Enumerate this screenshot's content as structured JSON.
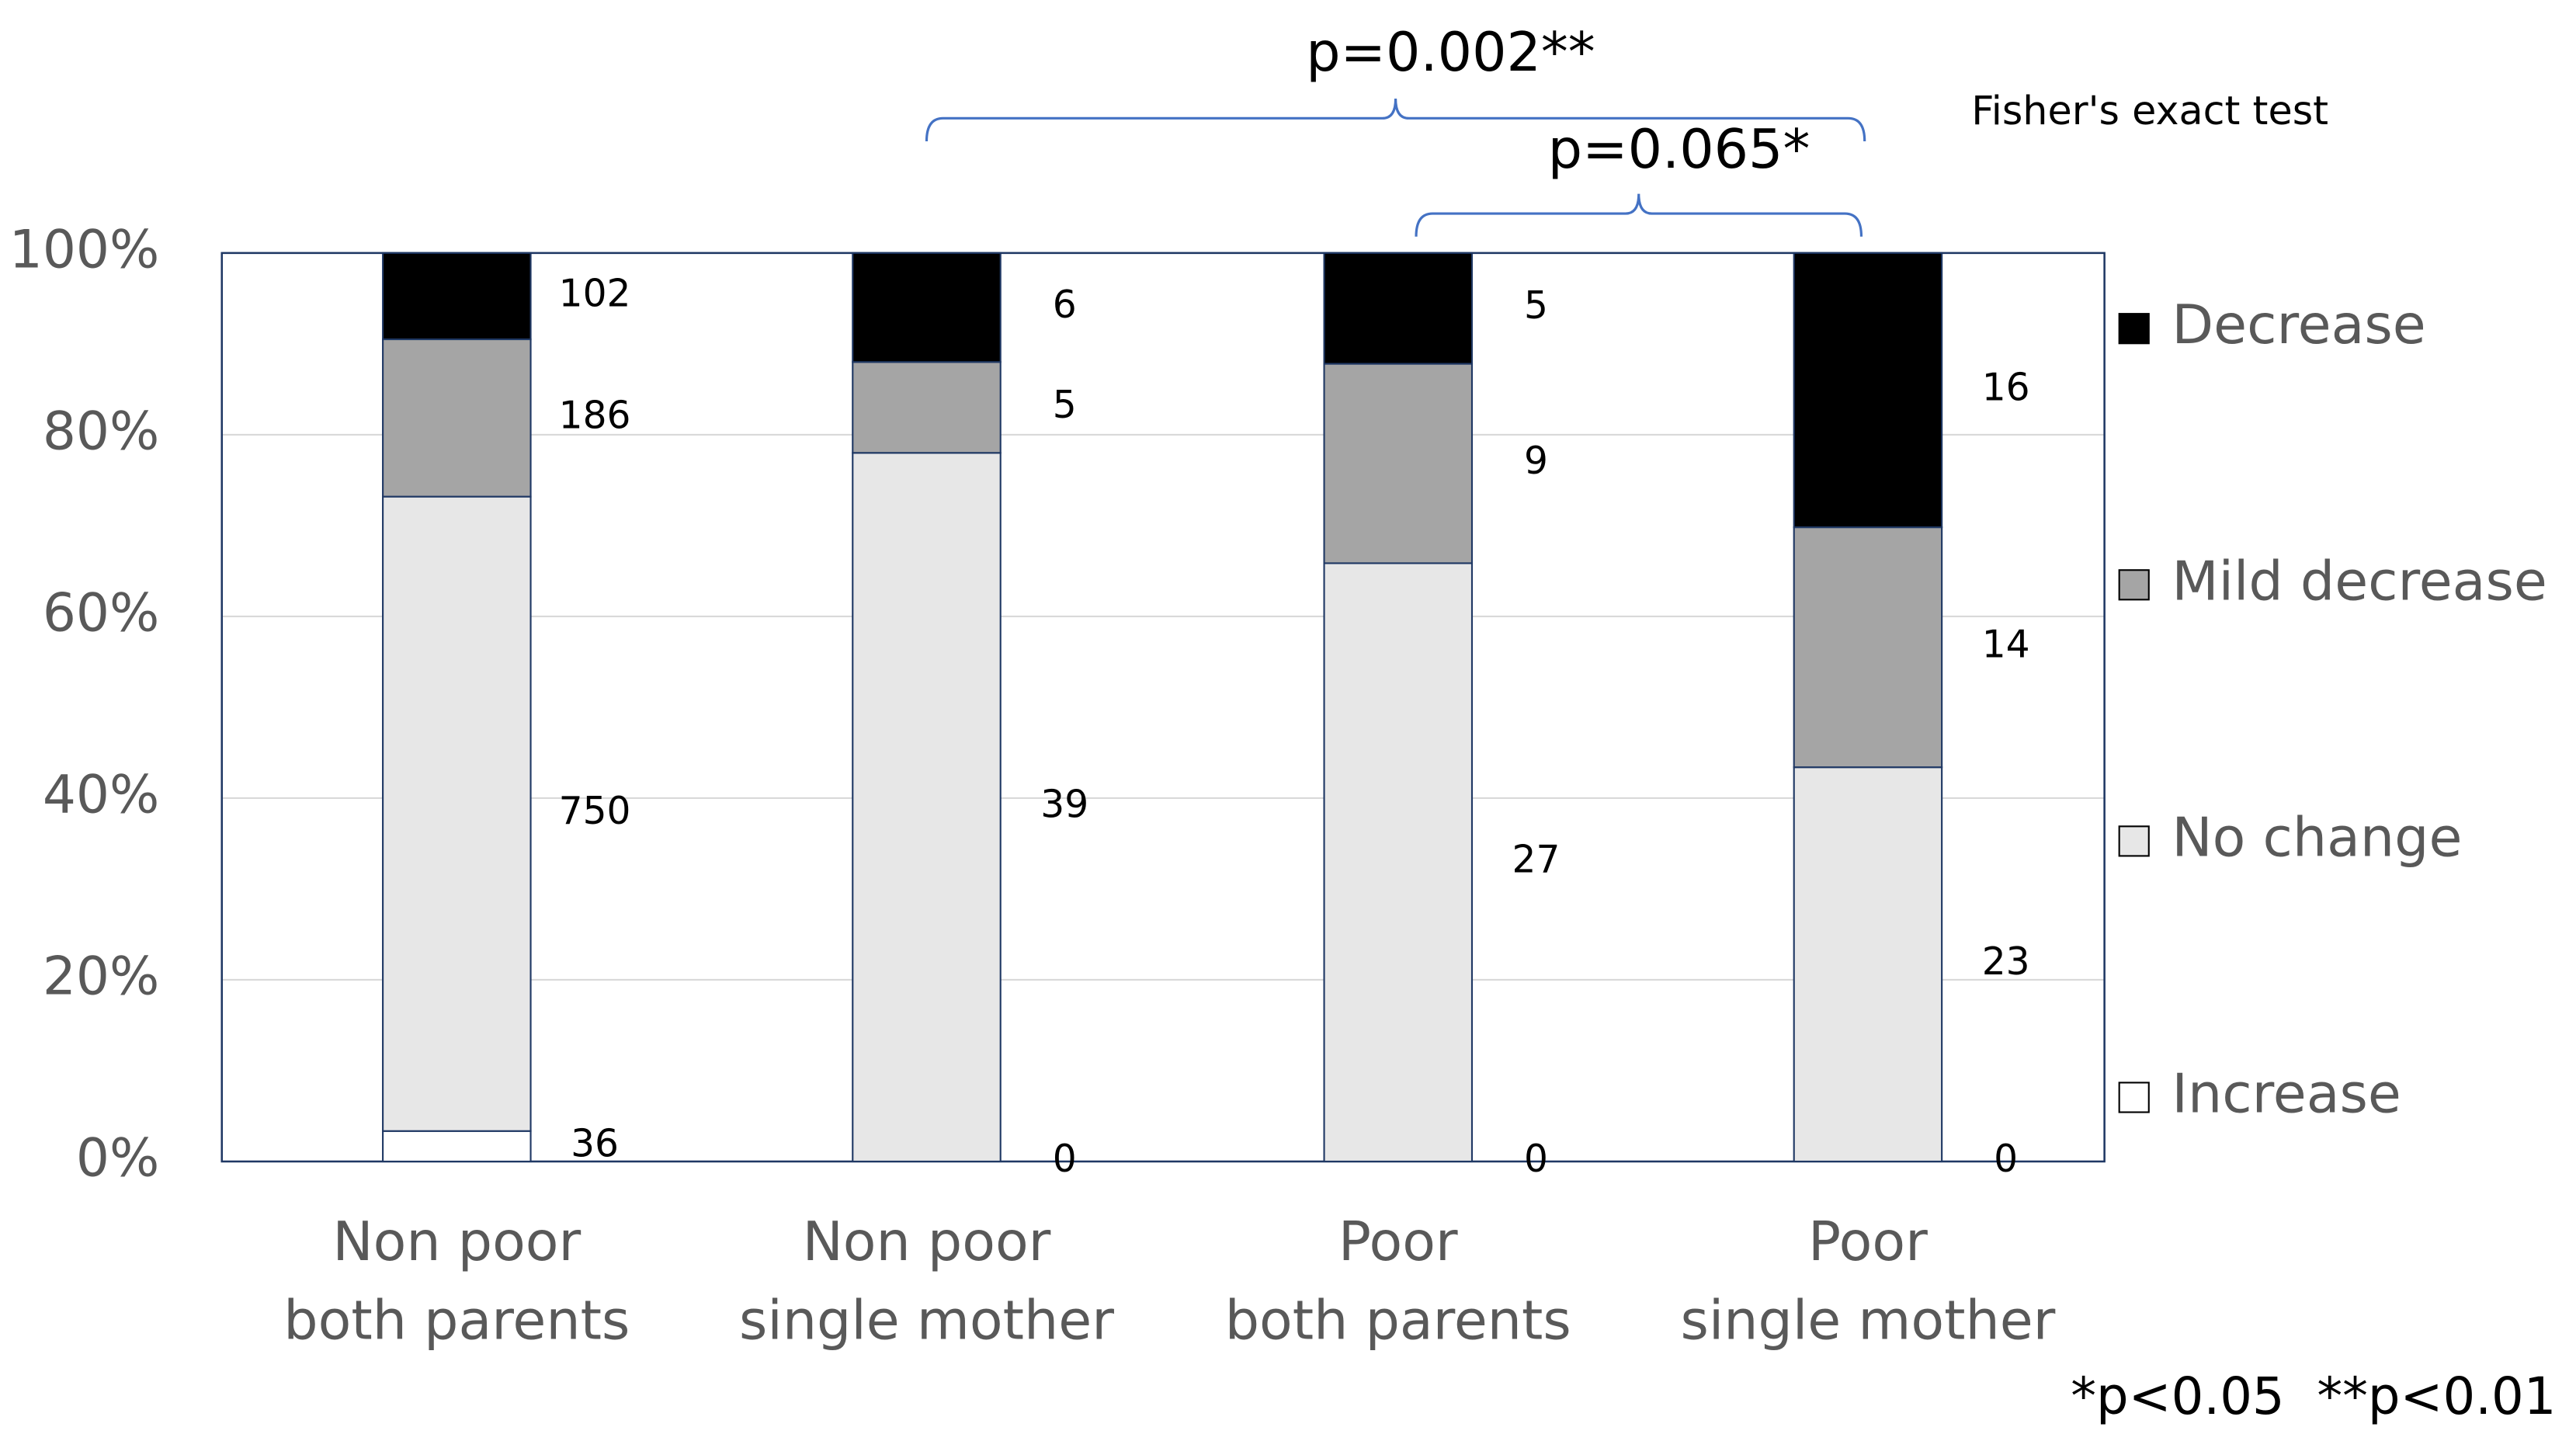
{
  "chart_data": {
    "type": "stacked_percent_bar",
    "categories": [
      [
        "Non poor",
        "both parents"
      ],
      [
        "Non poor",
        "single mother"
      ],
      [
        "Poor",
        "both parents"
      ],
      [
        "Poor",
        "single mother"
      ]
    ],
    "series": [
      {
        "name": "Increase",
        "color": "#ffffff",
        "values": [
          36,
          0,
          0,
          0
        ]
      },
      {
        "name": "No change",
        "color": "#e7e7e7",
        "values": [
          750,
          39,
          27,
          23
        ]
      },
      {
        "name": "Mild decrease",
        "color": "#a5a5a5",
        "values": [
          186,
          5,
          9,
          14
        ]
      },
      {
        "name": "Decrease",
        "color": "#000000",
        "values": [
          102,
          6,
          5,
          16
        ]
      }
    ],
    "ylim": [
      0,
      100
    ],
    "yticks": [
      {
        "value": 0,
        "label": "0%"
      },
      {
        "value": 20,
        "label": "20%"
      },
      {
        "value": 40,
        "label": "40%"
      },
      {
        "value": 60,
        "label": "60%"
      },
      {
        "value": 80,
        "label": "80%"
      },
      {
        "value": 100,
        "label": "100%"
      }
    ],
    "grid": true,
    "legend": "right",
    "annotations": [
      "p=0.002**",
      "p=0.065*",
      "Fisher's exact test",
      "*p<0.05  **p<0.01"
    ]
  }
}
